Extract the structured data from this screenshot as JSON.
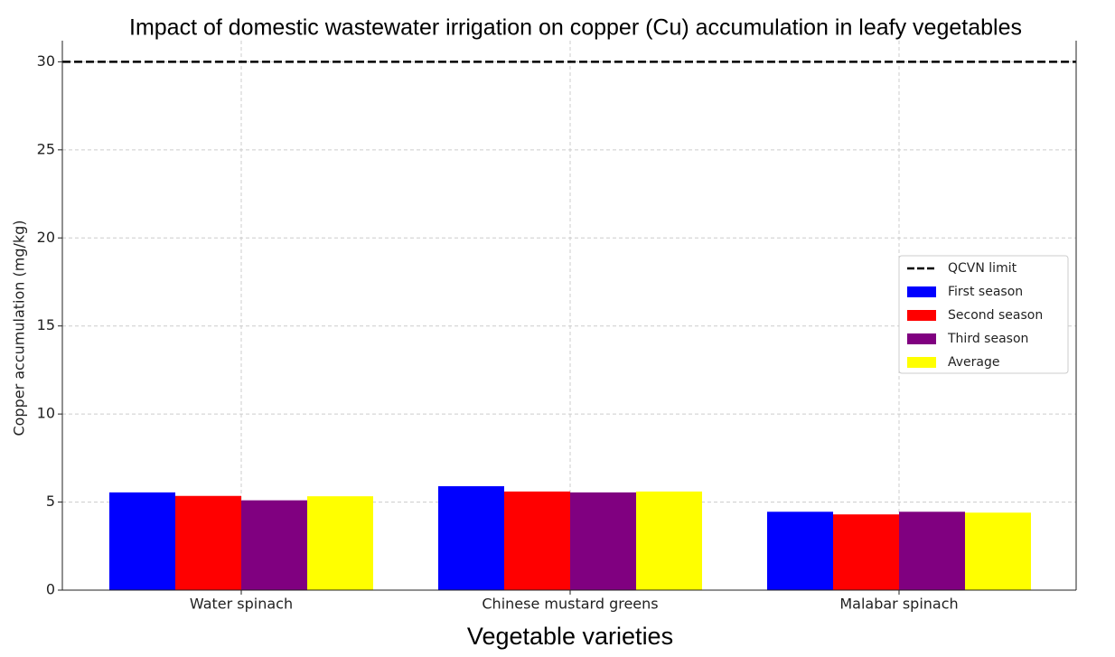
{
  "chart_data": {
    "type": "bar",
    "title": "Impact of domestic wastewater irrigation on copper (Cu) accumulation in leafy vegetables",
    "xlabel": "Vegetable varieties",
    "ylabel": "Copper accumulation (mg/kg)",
    "categories": [
      "Water spinach",
      "Chinese mustard greens",
      "Malabar spinach"
    ],
    "series": [
      {
        "name": "First season",
        "color": "#0000ff",
        "values": [
          5.55,
          5.9,
          4.45
        ]
      },
      {
        "name": "Second season",
        "color": "#ff0000",
        "values": [
          5.35,
          5.6,
          4.3
        ]
      },
      {
        "name": "Third season",
        "color": "#800080",
        "values": [
          5.1,
          5.55,
          4.45
        ]
      },
      {
        "name": "Average",
        "color": "#ffff00",
        "values": [
          5.33,
          5.6,
          4.4
        ]
      }
    ],
    "reference_line": {
      "name": "QCVN limit",
      "value": 30,
      "color": "#000000"
    },
    "ylim": [
      0,
      31.2
    ],
    "yticks": [
      0,
      5,
      10,
      15,
      20,
      25,
      30
    ],
    "grid": true,
    "legend": "center right"
  }
}
